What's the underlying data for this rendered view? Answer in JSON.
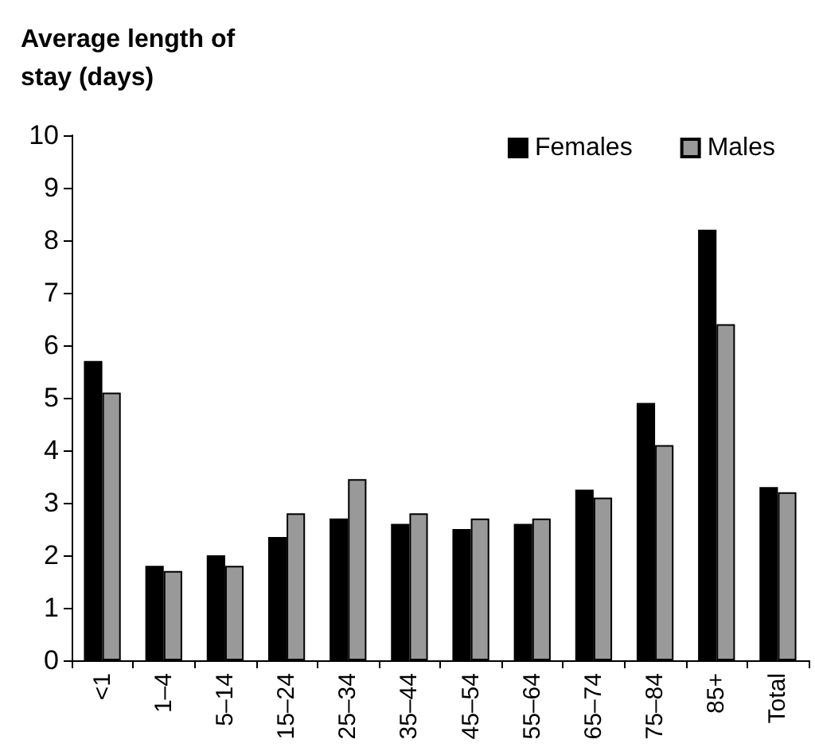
{
  "chart_data": {
    "type": "bar",
    "title": "Average length of stay (days)",
    "categories": [
      "<1",
      "1–4",
      "5–14",
      "15–24",
      "25–34",
      "35–44",
      "45–54",
      "55–64",
      "65–74",
      "75–84",
      "85+",
      "Total"
    ],
    "series": [
      {
        "name": "Females",
        "color": "#000000",
        "values": [
          5.7,
          1.8,
          2.0,
          2.35,
          2.7,
          2.6,
          2.5,
          2.6,
          3.25,
          4.9,
          8.2,
          3.3
        ]
      },
      {
        "name": "Males",
        "color": "#999999",
        "values": [
          5.1,
          1.7,
          1.8,
          2.8,
          3.45,
          2.8,
          2.7,
          2.7,
          3.1,
          4.1,
          6.4,
          3.2
        ]
      }
    ],
    "ylim": [
      0,
      10
    ],
    "yticks": [
      0,
      1,
      2,
      3,
      4,
      5,
      6,
      7,
      8,
      9,
      10
    ],
    "grid": false,
    "legend": "top right"
  }
}
